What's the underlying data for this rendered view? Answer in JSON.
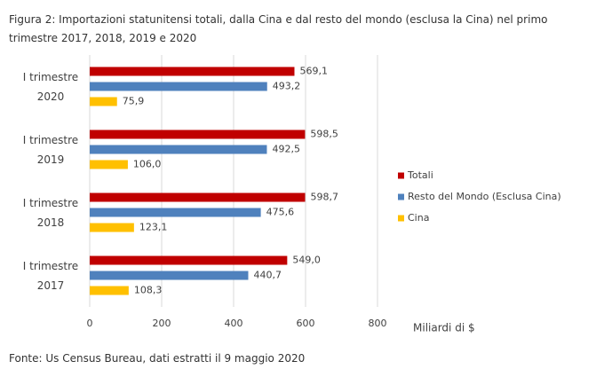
{
  "chart_data": {
    "type": "bar",
    "orientation": "horizontal",
    "title": "Figura 2: Importazioni statunitensi totali, dalla Cina e dal resto del mondo (esclusa la Cina) nel primo trimestre 2017, 2018, 2019 e 2020",
    "source": "Fonte: Us Census Bureau, dati estratti il 9 maggio 2020",
    "x_label": "Miliardi di $",
    "categories": [
      "I trimestre 2020",
      "I trimestre 2019",
      "I trimestre 2018",
      "I trimestre 2017"
    ],
    "series": [
      {
        "name": "Totali",
        "color": "#c00000",
        "values": [
          569.1,
          598.5,
          598.7,
          549.0
        ],
        "value_labels": [
          "569,1",
          "598,5",
          "598,7",
          "549,0"
        ]
      },
      {
        "name": "Resto del Mondo (Esclusa Cina)",
        "color": "#4f81bd",
        "values": [
          493.2,
          492.5,
          475.6,
          440.7
        ],
        "value_labels": [
          "493,2",
          "492,5",
          "475,6",
          "440,7"
        ]
      },
      {
        "name": "Cina",
        "color": "#ffc000",
        "values": [
          75.9,
          106.0,
          123.1,
          108.3
        ],
        "value_labels": [
          "75,9",
          "106,0",
          "123,1",
          "108,3"
        ]
      }
    ],
    "xlim": [
      0,
      800
    ],
    "xticks": [
      0,
      200,
      400,
      600,
      800
    ],
    "grid": true,
    "legend": "right"
  }
}
